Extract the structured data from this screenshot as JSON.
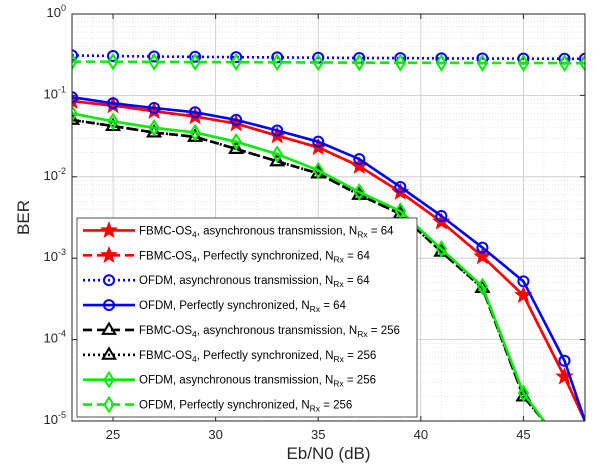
{
  "chart_data": {
    "type": "line",
    "title": "",
    "xlabel": "Eb/N0 (dB)",
    "ylabel": "BER",
    "xlim": [
      23,
      48
    ],
    "ylim": [
      1e-05,
      1
    ],
    "y_scale": "log",
    "grid": true,
    "minor_grid": true,
    "legend_position": "bottom-left",
    "x_ticks": [
      25,
      30,
      35,
      40,
      45
    ],
    "x_tick_labels": [
      "25",
      "30",
      "35",
      "40",
      "45"
    ],
    "y_ticks": [
      1e-05,
      0.0001,
      0.001,
      0.01,
      0.1,
      1
    ],
    "y_tick_labels": [
      {
        "base": "10",
        "exp": "-5"
      },
      {
        "base": "10",
        "exp": "-4"
      },
      {
        "base": "10",
        "exp": "-3"
      },
      {
        "base": "10",
        "exp": "-2"
      },
      {
        "base": "10",
        "exp": "-1"
      },
      {
        "base": "10",
        "exp": "0"
      }
    ],
    "series": [
      {
        "legend": [
          {
            "t": "FBMC-OS"
          },
          {
            "t": "4",
            "sub": true
          },
          {
            "t": ", asynchronous transmission, N"
          },
          {
            "t": "Rx",
            "sub": true
          },
          {
            "t": " = 64"
          }
        ],
        "color": "#ff0000",
        "dash": "solid",
        "marker": "star",
        "x": [
          23,
          25,
          27,
          29,
          31,
          33,
          35,
          37,
          39,
          41,
          43,
          45,
          47,
          48
        ],
        "y": [
          0.085,
          0.075,
          0.064,
          0.055,
          0.045,
          0.032,
          0.023,
          0.0135,
          0.0065,
          0.0028,
          0.00105,
          0.00035,
          3.5e-05,
          1e-05
        ]
      },
      {
        "legend": [
          {
            "t": "FBMC-OS"
          },
          {
            "t": "4",
            "sub": true
          },
          {
            "t": ", Perfectly synchronized, N"
          },
          {
            "t": "Rx",
            "sub": true
          },
          {
            "t": " = 64"
          }
        ],
        "color": "#ff0000",
        "dash": "dashed",
        "marker": "star",
        "x": [
          23,
          25,
          27,
          29,
          31,
          33,
          35,
          37,
          39,
          41,
          43,
          45,
          47,
          48
        ],
        "y": [
          0.085,
          0.075,
          0.064,
          0.055,
          0.045,
          0.032,
          0.023,
          0.0135,
          0.0065,
          0.0028,
          0.00105,
          0.00035,
          3.5e-05,
          1e-05
        ]
      },
      {
        "legend": [
          {
            "t": "OFDM, asynchronous transmission, N"
          },
          {
            "t": "Rx",
            "sub": true
          },
          {
            "t": " = 64"
          }
        ],
        "color": "#0000ff",
        "dash": "dotted",
        "marker": "circle",
        "x": [
          23,
          25,
          27,
          29,
          31,
          33,
          35,
          37,
          39,
          41,
          43,
          45,
          47,
          48
        ],
        "y": [
          0.31,
          0.305,
          0.3,
          0.298,
          0.295,
          0.293,
          0.29,
          0.288,
          0.287,
          0.285,
          0.284,
          0.283,
          0.282,
          0.282
        ]
      },
      {
        "legend": [
          {
            "t": "OFDM, Perfectly synchronized, N"
          },
          {
            "t": "Rx",
            "sub": true
          },
          {
            "t": " = 64"
          }
        ],
        "color": "#0000ff",
        "dash": "solid",
        "marker": "circle",
        "x": [
          23,
          25,
          27,
          29,
          31,
          33,
          35,
          37,
          39,
          41,
          43,
          45,
          47,
          48
        ],
        "y": [
          0.095,
          0.08,
          0.07,
          0.062,
          0.05,
          0.037,
          0.027,
          0.0165,
          0.0075,
          0.0033,
          0.00135,
          0.00052,
          5.5e-05,
          1e-05
        ]
      },
      {
        "legend": [
          {
            "t": "FBMC-OS"
          },
          {
            "t": "4",
            "sub": true
          },
          {
            "t": ", asynchronous transmission, N"
          },
          {
            "t": "Rx",
            "sub": true
          },
          {
            "t": " = 256"
          }
        ],
        "color": "#000000",
        "dash": "dashed",
        "marker": "triangle",
        "x": [
          23,
          25,
          27,
          29,
          31,
          33,
          35,
          37,
          39,
          41,
          43,
          45,
          46
        ],
        "y": [
          0.05,
          0.042,
          0.035,
          0.031,
          0.022,
          0.0155,
          0.011,
          0.006,
          0.0035,
          0.0012,
          0.00043,
          2e-05,
          1e-05
        ]
      },
      {
        "legend": [
          {
            "t": "FBMC-OS"
          },
          {
            "t": "4",
            "sub": true
          },
          {
            "t": ", Perfectly synchronized, N"
          },
          {
            "t": "Rx",
            "sub": true
          },
          {
            "t": " = 256"
          }
        ],
        "color": "#000000",
        "dash": "dotted",
        "marker": "triangle",
        "x": [
          23,
          25,
          27,
          29,
          31,
          33,
          35,
          37,
          39,
          41,
          43,
          45,
          46
        ],
        "y": [
          0.05,
          0.042,
          0.035,
          0.031,
          0.022,
          0.0155,
          0.011,
          0.006,
          0.0035,
          0.0012,
          0.00043,
          2e-05,
          1e-05
        ]
      },
      {
        "legend": [
          {
            "t": "OFDM, asynchronous transmission, N"
          },
          {
            "t": "Rx",
            "sub": true
          },
          {
            "t": " = 256"
          }
        ],
        "color": "#00ee00",
        "dash": "solid",
        "marker": "diamond",
        "x": [
          23,
          25,
          27,
          29,
          31,
          33,
          35,
          37,
          39,
          41,
          43,
          45,
          46
        ],
        "y": [
          0.06,
          0.048,
          0.04,
          0.035,
          0.027,
          0.019,
          0.012,
          0.0065,
          0.0038,
          0.0013,
          0.00045,
          2.2e-05,
          1e-05
        ]
      },
      {
        "legend": [
          {
            "t": "OFDM, Perfectly synchronized, N"
          },
          {
            "t": "Rx",
            "sub": true
          },
          {
            "t": " = 256"
          }
        ],
        "color": "#00ee00",
        "dash": "dashed",
        "marker": "diamond",
        "x": [
          23,
          25,
          27,
          29,
          31,
          33,
          35,
          37,
          39,
          41,
          43,
          45,
          47,
          48
        ],
        "y": [
          0.26,
          0.26,
          0.258,
          0.257,
          0.256,
          0.255,
          0.254,
          0.253,
          0.252,
          0.251,
          0.25,
          0.25,
          0.249,
          0.249
        ]
      }
    ]
  }
}
